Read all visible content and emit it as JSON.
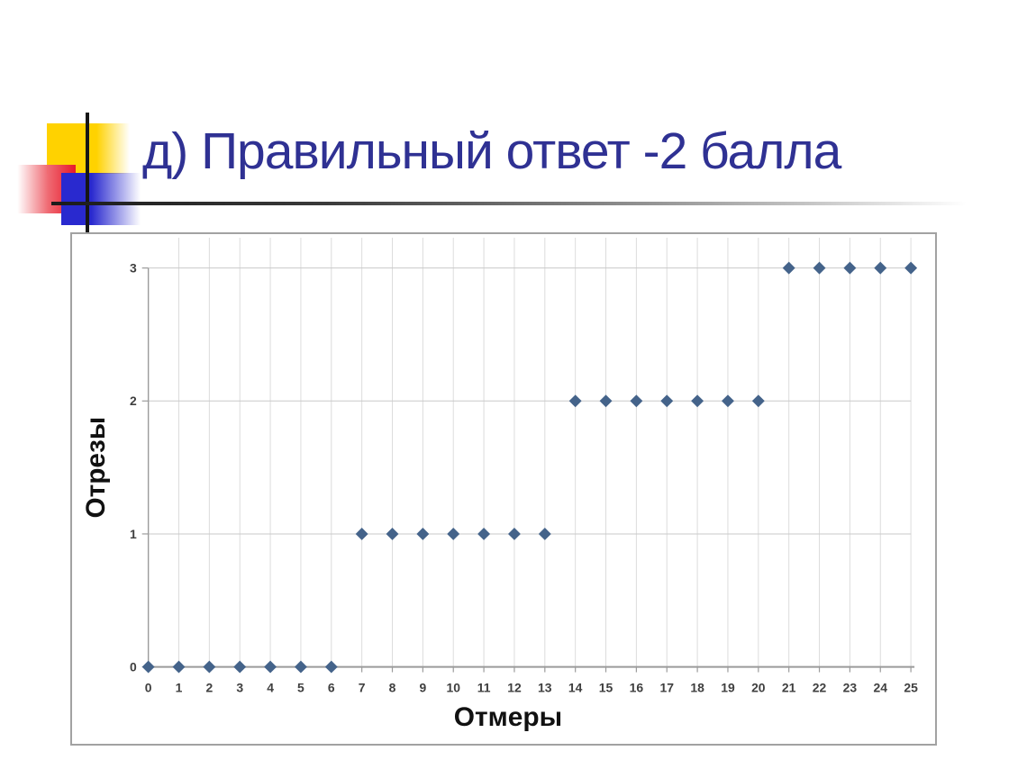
{
  "slide": {
    "title": "д) Правильный ответ -2 балла",
    "title_color": "#2f3193"
  },
  "decoration": {
    "yellow_square_color": "#ffd200",
    "red_square_color": "#e81c2d",
    "blue_square_color": "#2929cf",
    "crosshair_line_color": "#161616",
    "underline_rule_color": "#3a3a3a"
  },
  "chart_data": {
    "type": "scatter",
    "title": "",
    "xlabel": "Отмеры",
    "ylabel": "Отрезы",
    "xlim": [
      0,
      25
    ],
    "ylim": [
      0,
      3
    ],
    "x_ticks": [
      0,
      1,
      2,
      3,
      4,
      5,
      6,
      7,
      8,
      9,
      10,
      11,
      12,
      13,
      14,
      15,
      16,
      17,
      18,
      19,
      20,
      21,
      22,
      23,
      24,
      25
    ],
    "y_ticks": [
      0,
      1,
      2,
      3
    ],
    "grid": true,
    "legend": false,
    "marker": "diamond",
    "marker_color": "#44638a",
    "gridline_color_vertical": "#dcdcdc",
    "gridline_color_horizontal": "#c9c9c9",
    "axis_color": "#9b9b9b",
    "tick_label_color": "#3f3f3f",
    "points": [
      [
        0,
        0
      ],
      [
        1,
        0
      ],
      [
        2,
        0
      ],
      [
        3,
        0
      ],
      [
        4,
        0
      ],
      [
        5,
        0
      ],
      [
        6,
        0
      ],
      [
        7,
        1
      ],
      [
        8,
        1
      ],
      [
        9,
        1
      ],
      [
        10,
        1
      ],
      [
        11,
        1
      ],
      [
        12,
        1
      ],
      [
        13,
        1
      ],
      [
        14,
        2
      ],
      [
        15,
        2
      ],
      [
        16,
        2
      ],
      [
        17,
        2
      ],
      [
        18,
        2
      ],
      [
        19,
        2
      ],
      [
        20,
        2
      ],
      [
        21,
        3
      ],
      [
        22,
        3
      ],
      [
        23,
        3
      ],
      [
        24,
        3
      ],
      [
        25,
        3
      ]
    ]
  }
}
